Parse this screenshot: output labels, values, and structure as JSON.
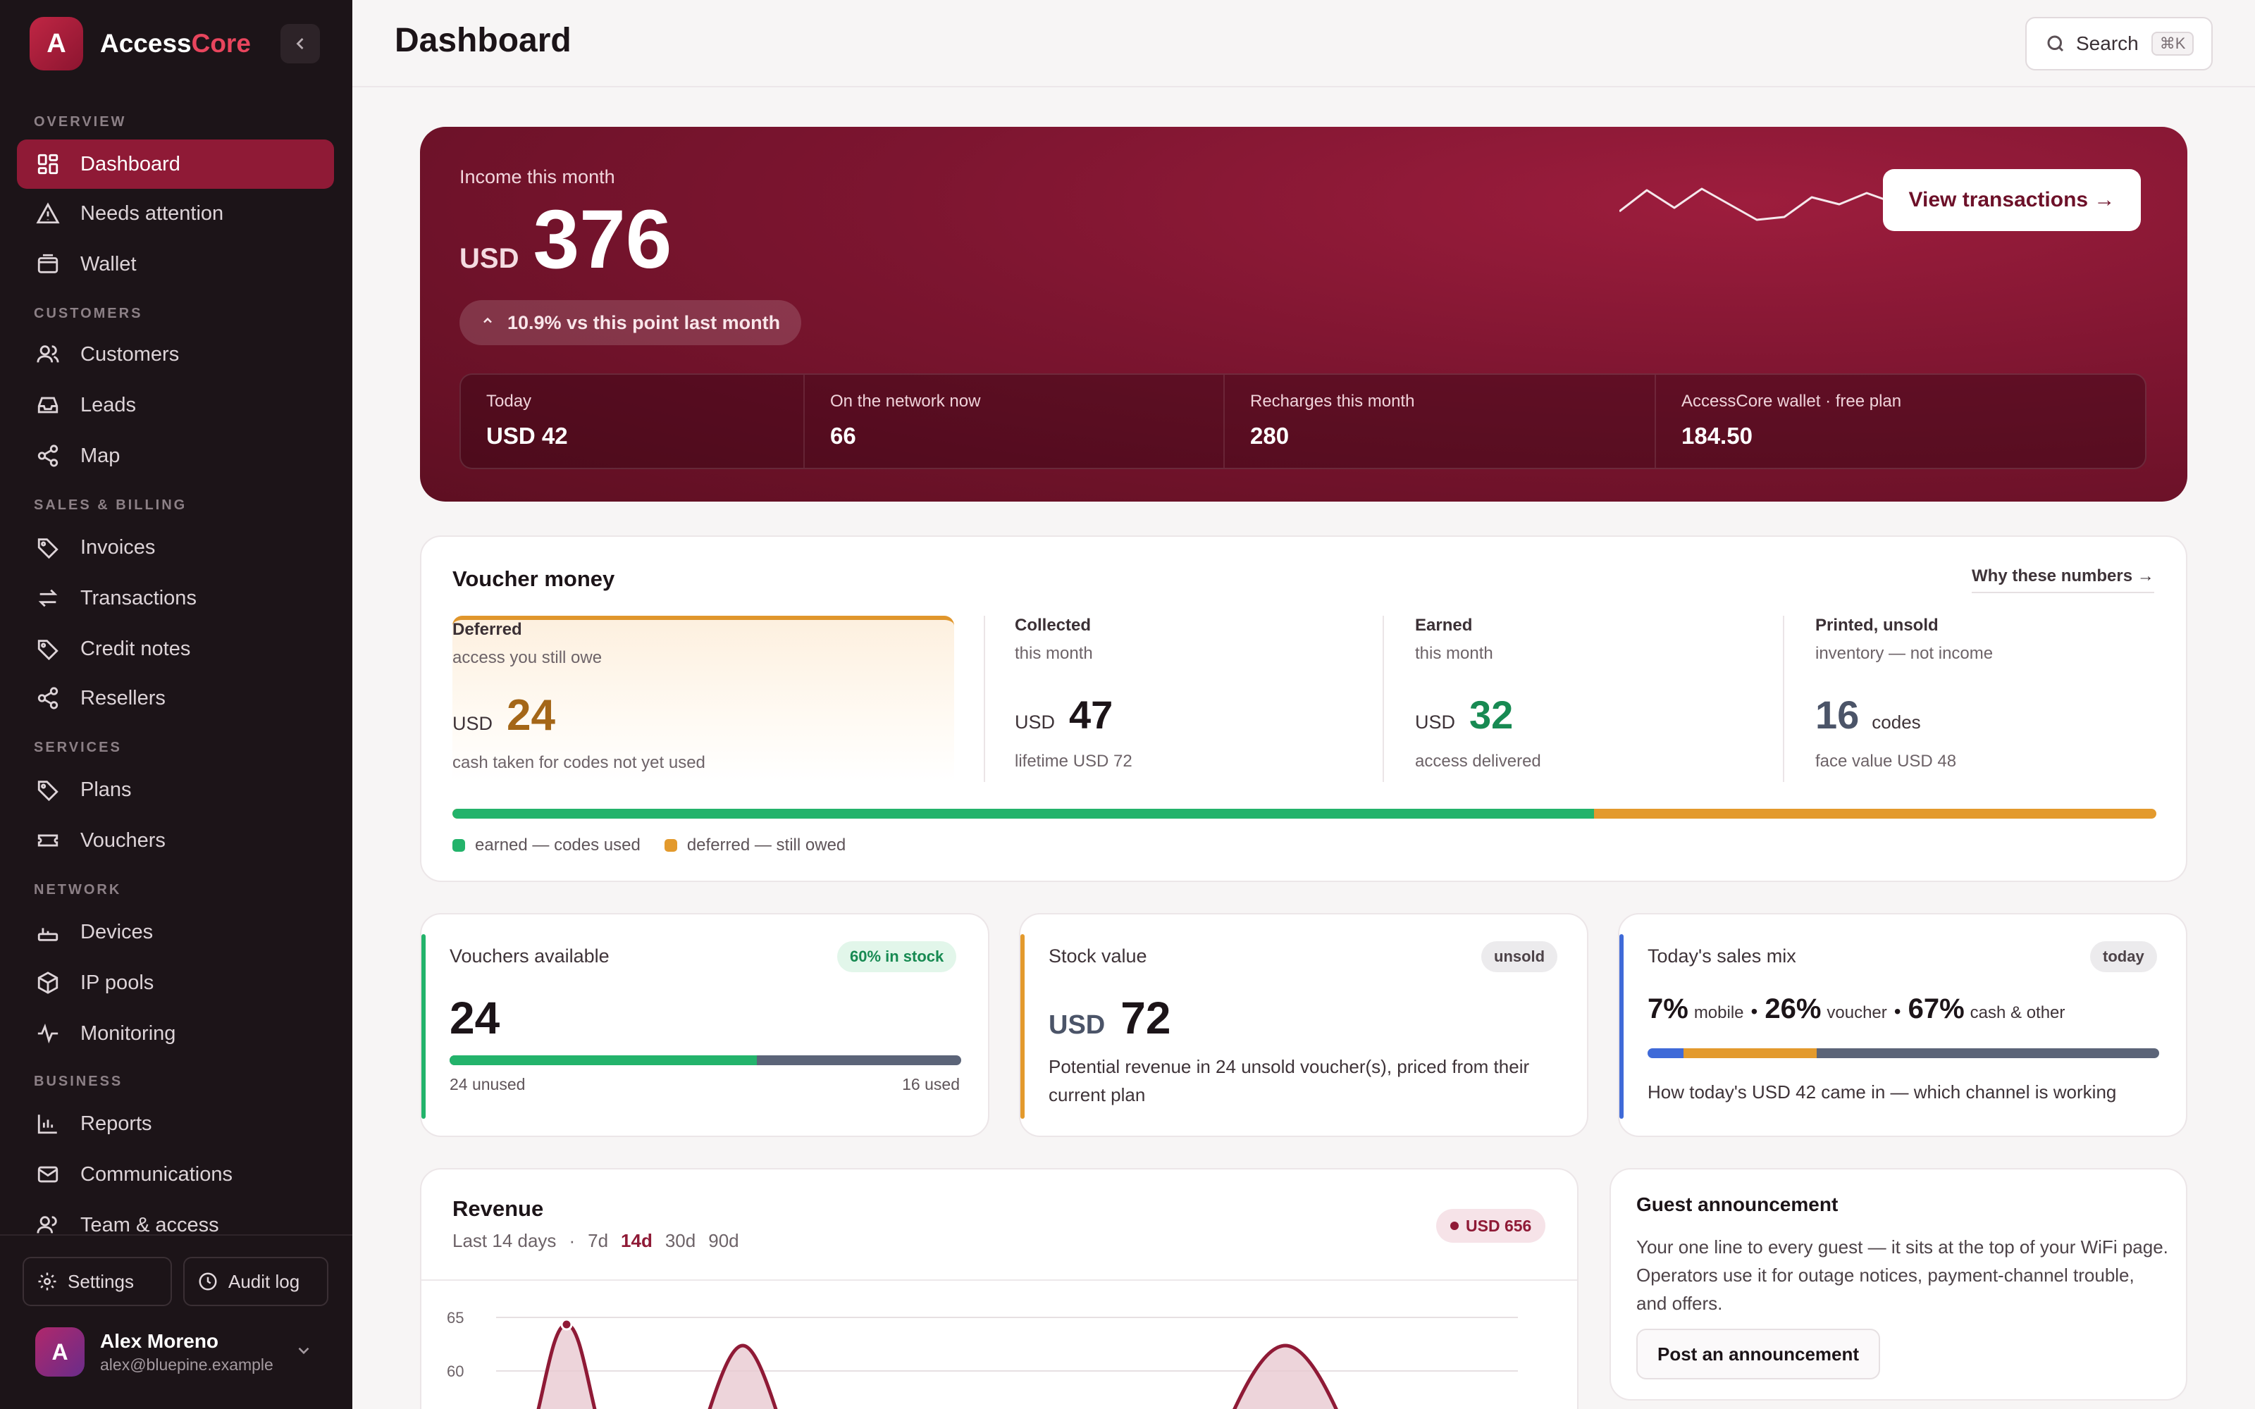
{
  "brand": {
    "logo_letter": "A",
    "name_part1": "Access",
    "name_part2": "Core",
    "collapse_icon": "chevron-left-icon"
  },
  "nav": {
    "sections": {
      "overview": "OVERVIEW",
      "customers": "CUSTOMERS",
      "sales": "SALES & BILLING",
      "services": "SERVICES",
      "network": "NETWORK",
      "business": "BUSINESS"
    },
    "items": {
      "dashboard": "Dashboard",
      "needs_attention": "Needs attention",
      "wallet": "Wallet",
      "customers": "Customers",
      "leads": "Leads",
      "map": "Map",
      "invoices": "Invoices",
      "transactions": "Transactions",
      "credit_notes": "Credit notes",
      "resellers": "Resellers",
      "plans": "Plans",
      "vouchers": "Vouchers",
      "devices": "Devices",
      "ip_pools": "IP pools",
      "monitoring": "Monitoring",
      "reports": "Reports",
      "communications": "Communications",
      "team": "Team & access"
    },
    "active": "dashboard"
  },
  "sidebar_footer": {
    "settings": "Settings",
    "audit_log": "Audit log"
  },
  "user": {
    "initial": "A",
    "name": "Alex Moreno",
    "email": "alex@bluepine.example"
  },
  "topbar": {
    "title": "Dashboard",
    "search_label": "Search",
    "search_shortcut": "⌘K"
  },
  "hero": {
    "label": "Income this month",
    "currency": "USD",
    "amount": "376",
    "change": "10.9% vs this point last month",
    "cta": "View transactions →",
    "sparkline": [
      40,
      10,
      35,
      8,
      30,
      52,
      48,
      20,
      30,
      14,
      28
    ],
    "stats": [
      {
        "label": "Today",
        "value": "USD 42"
      },
      {
        "label": "On the network now",
        "value": "66"
      },
      {
        "label": "Recharges this month",
        "value": "280"
      },
      {
        "label": "AccessCore wallet · free plan",
        "value": "184.50"
      }
    ]
  },
  "voucher_money": {
    "title": "Voucher money",
    "why_link": "Why these numbers →",
    "deferred": {
      "title": "Deferred",
      "sub": "access you still owe",
      "currency": "USD",
      "amount": "24",
      "foot": "cash taken for codes not yet used"
    },
    "collected": {
      "title": "Collected",
      "sub": "this month",
      "currency": "USD",
      "amount": "47",
      "foot": "lifetime USD 72"
    },
    "earned": {
      "title": "Earned",
      "sub": "this month",
      "currency": "USD",
      "amount": "32",
      "foot": "access delivered"
    },
    "printed": {
      "title": "Printed, unsold",
      "sub": "inventory — not income",
      "amount": "16",
      "unit": "codes",
      "foot": "face value USD 48"
    },
    "earned_fraction": 0.67,
    "legend": {
      "earned": "earned — codes used",
      "deferred": "deferred — still owed"
    },
    "colors": {
      "earned": "#23b36b",
      "deferred": "#e39a2d"
    }
  },
  "cards": {
    "vouchers": {
      "title": "Vouchers available",
      "badge": "60% in stock",
      "value": "24",
      "unused": "24 unused",
      "used": "16 used",
      "stock_fraction": 0.6
    },
    "stock": {
      "title": "Stock value",
      "badge": "unsold",
      "currency": "USD",
      "value": "72",
      "text": "Potential revenue in 24 unsold voucher(s), priced from their current plan"
    },
    "mix": {
      "title": "Today's sales mix",
      "badge": "today",
      "p1": "7%",
      "l1": "mobile",
      "p2": "26%",
      "l2": "voucher",
      "p3": "67%",
      "l3": "cash & other",
      "sep": "•",
      "segments": [
        0.07,
        0.26,
        0.67
      ],
      "text": "How today's USD 42 came in — which channel is working"
    }
  },
  "revenue": {
    "title": "Revenue",
    "range_label": "Last 14 days",
    "sep": "·",
    "tabs": [
      "7d",
      "14d",
      "30d",
      "90d"
    ],
    "active_tab": "14d",
    "total": "USD 656",
    "y_ticks": [
      "65",
      "60"
    ]
  },
  "announcement": {
    "title": "Guest announcement",
    "text": "Your one line to every guest — it sits at the top of your WiFi page. Operators use it for outage notices, payment-channel trouble, and offers.",
    "button": "Post an announcement"
  }
}
